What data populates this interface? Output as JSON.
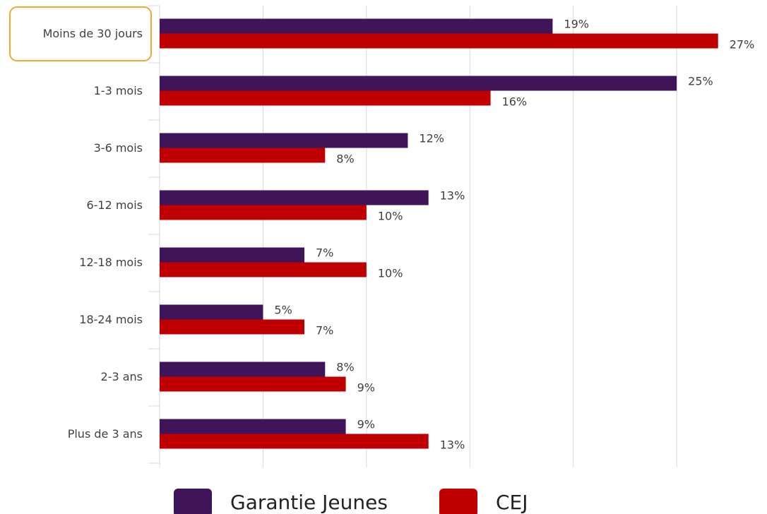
{
  "chart_data": {
    "type": "hbar",
    "categories": [
      "Moins de 30 jours",
      "1-3 mois",
      "3-6 mois",
      "6-12 mois",
      "12-18 mois",
      "18-24 mois",
      "2-3 ans",
      "Plus de 3 ans"
    ],
    "series": [
      {
        "name": "Garantie Jeunes",
        "color": "#3f1458",
        "values": [
          19,
          25,
          12,
          13,
          7,
          5,
          8,
          9
        ],
        "value_labels": [
          "19%",
          "25%",
          "12%",
          "13%",
          "7%",
          "5%",
          "8%",
          "9%"
        ]
      },
      {
        "name": "CEJ",
        "color": "#c00000",
        "values": [
          27,
          16,
          8,
          10,
          10,
          7,
          9,
          13
        ],
        "value_labels": [
          "27%",
          "16%",
          "8%",
          "10%",
          "10%",
          "7%",
          "9%",
          "13%"
        ]
      }
    ],
    "xlim": [
      0,
      28
    ],
    "xticks": [
      0,
      5,
      10,
      15,
      20,
      25
    ],
    "grid": true
  }
}
